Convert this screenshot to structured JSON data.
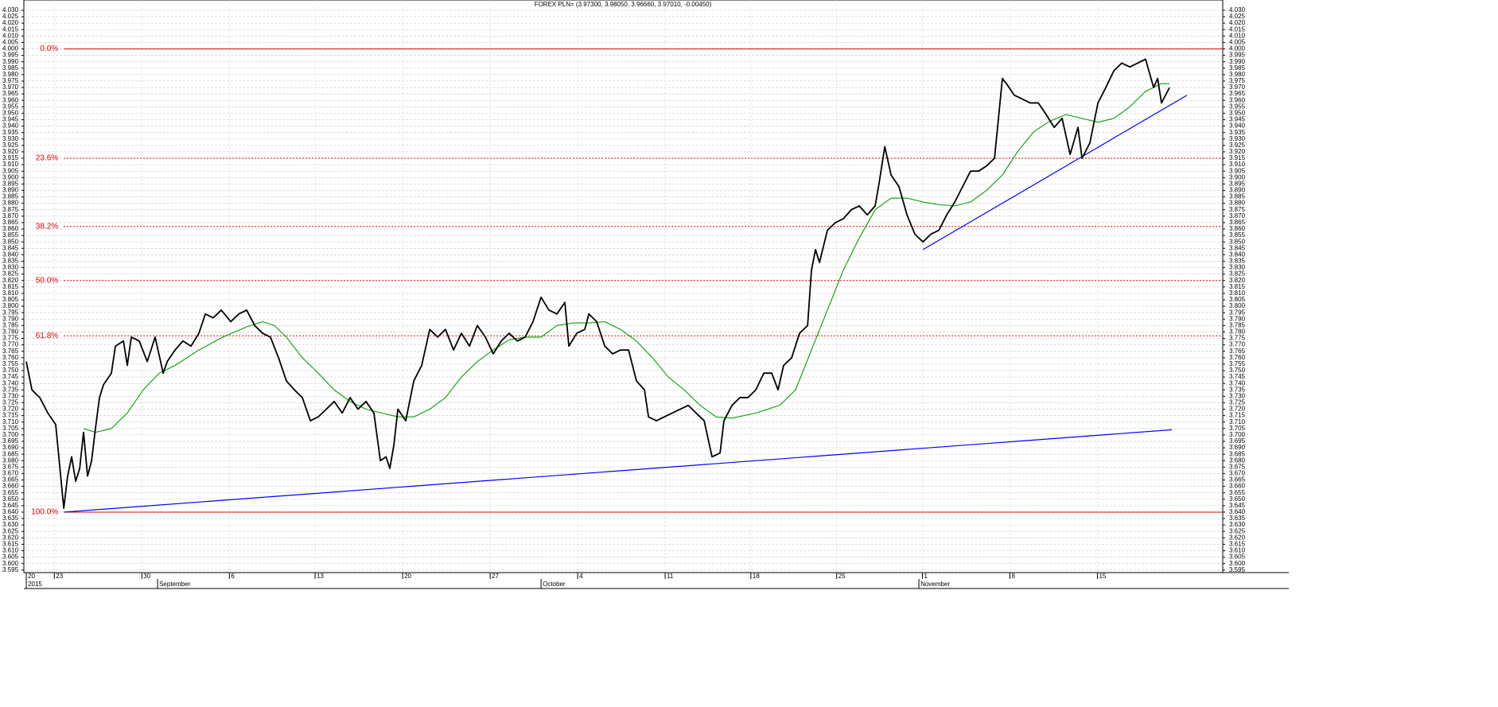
{
  "chart_data": {
    "type": "line",
    "title": "FOREX PLN= (3.97300, 3.98050, 3.96660, 3.97010, -0.00450)",
    "xlim": [
      -0.14,
      68.36
    ],
    "ylim": [
      3.593,
      4.038
    ],
    "grid": true,
    "yticks": [
      3.595,
      {
        "value": 3.6,
        "label": "3.600"
      },
      3.605,
      {
        "value": 3.61,
        "label": "3.610"
      },
      3.615,
      {
        "value": 3.62,
        "label": "3.620"
      },
      3.625,
      {
        "value": 3.63,
        "label": "3.630"
      },
      3.635,
      {
        "value": 3.64,
        "label": "3.640"
      },
      3.645,
      {
        "value": 3.65,
        "label": "3.650"
      },
      3.655,
      {
        "value": 3.66,
        "label": "3.660"
      },
      3.665,
      {
        "value": 3.67,
        "label": "3.670"
      },
      3.675,
      {
        "value": 3.68,
        "label": "3.680"
      },
      3.685,
      {
        "value": 3.69,
        "label": "3.690"
      },
      3.695,
      {
        "value": 3.7,
        "label": "3.700"
      },
      3.705,
      {
        "value": 3.71,
        "label": "3.710"
      },
      3.715,
      {
        "value": 3.72,
        "label": "3.720"
      },
      3.725,
      {
        "value": 3.73,
        "label": "3.730"
      },
      3.735,
      {
        "value": 3.74,
        "label": "3.740"
      },
      3.745,
      {
        "value": 3.75,
        "label": "3.750"
      },
      3.755,
      {
        "value": 3.76,
        "label": "3.760"
      },
      3.765,
      {
        "value": 3.77,
        "label": "3.770"
      },
      3.775,
      {
        "value": 3.78,
        "label": "3.780"
      },
      3.785,
      {
        "value": 3.79,
        "label": "3.790"
      },
      3.795,
      {
        "value": 3.8,
        "label": "3.800"
      },
      3.805,
      {
        "value": 3.81,
        "label": "3.810"
      },
      3.815,
      {
        "value": 3.82,
        "label": "3.820"
      },
      3.825,
      {
        "value": 3.83,
        "label": "3.830"
      },
      3.835,
      {
        "value": 3.84,
        "label": "3.840"
      },
      3.845,
      {
        "value": 3.85,
        "label": "3.850"
      },
      3.855,
      {
        "value": 3.86,
        "label": "3.860"
      },
      3.865,
      {
        "value": 3.87,
        "label": "3.870"
      },
      3.875,
      {
        "value": 3.88,
        "label": "3.880"
      },
      3.885,
      {
        "value": 3.89,
        "label": "3.890"
      },
      3.895,
      {
        "value": 3.9,
        "label": "3.900"
      },
      3.905,
      {
        "value": 3.91,
        "label": "3.910"
      },
      3.915,
      {
        "value": 3.92,
        "label": "3.920"
      },
      3.925,
      {
        "value": 3.93,
        "label": "3.930"
      },
      3.935,
      {
        "value": 3.94,
        "label": "3.940"
      },
      3.945,
      {
        "value": 3.95,
        "label": "3.950"
      },
      3.955,
      {
        "value": 3.96,
        "label": "3.960"
      },
      3.965,
      {
        "value": 3.97,
        "label": "3.970"
      },
      3.975,
      {
        "value": 3.98,
        "label": "3.980"
      },
      3.985,
      {
        "value": 3.99,
        "label": "3.990"
      },
      3.995,
      {
        "value": 4.0,
        "label": "4.000"
      },
      4.005,
      {
        "value": 4.01,
        "label": "4.010"
      },
      4.015,
      {
        "value": 4.02,
        "label": "4.020"
      },
      4.025,
      {
        "value": 4.03,
        "label": "4.030"
      }
    ],
    "xticks": [
      {
        "value": 0,
        "label": "20"
      },
      {
        "value": 1.6,
        "label": "23"
      },
      {
        "value": 6.6,
        "label": "30"
      },
      {
        "value": 11.6,
        "label": "6"
      },
      {
        "value": 16.5,
        "label": "13"
      },
      {
        "value": 21.5,
        "label": "20"
      },
      {
        "value": 26.5,
        "label": "27"
      },
      {
        "value": 31.5,
        "label": "4"
      },
      {
        "value": 36.5,
        "label": "11"
      },
      {
        "value": 41.4,
        "label": "18"
      },
      {
        "value": 46.3,
        "label": "25"
      },
      {
        "value": 51.2,
        "label": "1"
      },
      {
        "value": 56.2,
        "label": "8"
      },
      {
        "value": 61.2,
        "label": "15"
      }
    ],
    "x_period_labels": [
      {
        "value": 0,
        "label": "2015"
      },
      {
        "value": 7.5,
        "label": "September"
      },
      {
        "value": 29.41,
        "label": "October"
      },
      {
        "value": 51.0,
        "label": "November"
      }
    ],
    "x": [
      0,
      0.32,
      0.77,
      1.23,
      1.68,
      2.14,
      2.36,
      2.59,
      2.82,
      3.05,
      3.27,
      3.5,
      3.73,
      3.95,
      4.18,
      4.41,
      4.86,
      5.09,
      5.55,
      5.77,
      6,
      6.45,
      6.91,
      7.36,
      7.82,
      8.05,
      8.5,
      8.95,
      9.41,
      9.86,
      10.23,
      10.68,
      11.14,
      11.68,
      12.14,
      12.59,
      13.05,
      13.5,
      13.95,
      14.41,
      14.86,
      15.32,
      15.77,
      16.23,
      16.68,
      17.14,
      17.59,
      18.05,
      18.5,
      18.95,
      19.41,
      19.86,
      20.23,
      20.55,
      20.77,
      21,
      21.23,
      21.68,
      22.14,
      22.59,
      23.05,
      23.5,
      23.95,
      24.41,
      24.86,
      25.32,
      25.77,
      26.23,
      26.68,
      27.14,
      27.59,
      28.05,
      28.5,
      28.95,
      29.41,
      29.86,
      30.32,
      30.77,
      31,
      31.45,
      31.91,
      32.14,
      32.59,
      33.05,
      33.5,
      33.95,
      34.41,
      34.86,
      35.32,
      35.55,
      36,
      36.45,
      36.91,
      37.36,
      37.82,
      38.27,
      38.73,
      39.18,
      39.64,
      39.86,
      40.32,
      40.77,
      41.23,
      41.68,
      42.14,
      42.59,
      42.95,
      43.27,
      43.73,
      44.18,
      44.64,
      44.86,
      45.09,
      45.32,
      45.77,
      46.23,
      46.68,
      47.14,
      47.59,
      48.05,
      48.5,
      48.73,
      49.05,
      49.41,
      49.86,
      50.32,
      50.77,
      51.23,
      51.68,
      52.14,
      52.59,
      53.05,
      53.5,
      53.95,
      54.41,
      54.86,
      55.32,
      55.77,
      56,
      56.45,
      56.91,
      57.36,
      57.82,
      58.27,
      58.73,
      59.18,
      59.64,
      60.09,
      60.32,
      60.77,
      61.23,
      61.68,
      62.14,
      62.59,
      63.05,
      63.5,
      63.95,
      64.41,
      64.64,
      64.86,
      65.09,
      65.32
    ],
    "series": [
      {
        "name": "FOREX PLN=",
        "color": "#000000",
        "values": [
          3.757,
          3.735,
          3.729,
          3.717,
          3.708,
          3.643,
          3.668,
          3.683,
          3.664,
          3.674,
          3.702,
          3.668,
          3.68,
          3.705,
          3.729,
          3.739,
          3.748,
          3.769,
          3.773,
          3.754,
          3.776,
          3.773,
          3.757,
          3.776,
          3.748,
          3.757,
          3.766,
          3.773,
          3.769,
          3.779,
          3.794,
          3.791,
          3.797,
          3.788,
          3.794,
          3.797,
          3.785,
          3.779,
          3.776,
          3.76,
          3.742,
          3.735,
          3.729,
          3.711,
          3.714,
          3.72,
          3.726,
          3.717,
          3.729,
          3.72,
          3.726,
          3.717,
          3.68,
          3.683,
          3.674,
          3.692,
          3.72,
          3.711,
          3.742,
          3.754,
          3.782,
          3.776,
          3.782,
          3.766,
          3.779,
          3.769,
          3.785,
          3.776,
          3.763,
          3.773,
          3.779,
          3.773,
          3.776,
          3.788,
          3.807,
          3.797,
          3.794,
          3.803,
          3.769,
          3.779,
          3.782,
          3.794,
          3.788,
          3.769,
          3.763,
          3.766,
          3.766,
          3.742,
          3.735,
          3.714,
          3.711,
          3.714,
          3.717,
          3.72,
          3.723,
          3.717,
          3.711,
          3.683,
          3.686,
          3.711,
          3.723,
          3.729,
          3.729,
          3.735,
          3.748,
          3.748,
          3.735,
          3.754,
          3.76,
          3.779,
          3.785,
          3.828,
          3.844,
          3.834,
          3.859,
          3.865,
          3.868,
          3.875,
          3.878,
          3.871,
          3.878,
          3.896,
          3.924,
          3.902,
          3.893,
          3.871,
          3.856,
          3.85,
          3.856,
          3.859,
          3.871,
          3.881,
          3.893,
          3.905,
          3.905,
          3.909,
          3.915,
          3.977,
          3.973,
          3.964,
          3.961,
          3.958,
          3.958,
          3.949,
          3.939,
          3.946,
          3.918,
          3.939,
          3.915,
          3.927,
          3.958,
          3.97,
          3.983,
          3.989,
          3.986,
          3.989,
          3.992,
          3.97,
          3.977,
          3.958,
          3.964,
          3.97
        ]
      },
      {
        "color": "#00a000",
        "x": [
          3.27,
          3.95,
          4.86,
          5.77,
          6.68,
          7.59,
          8.5,
          9.86,
          11.23,
          12.59,
          13.5,
          14.18,
          14.86,
          15.77,
          16.68,
          17.59,
          18.5,
          19.41,
          20.32,
          21.23,
          22.14,
          23.05,
          23.95,
          24.86,
          25.77,
          26.68,
          27.59,
          28.5,
          29.41,
          30.32,
          31.23,
          32.14,
          33.05,
          33.95,
          34.86,
          35.77,
          36.68,
          37.59,
          38.5,
          39.41,
          40.32,
          41.68,
          43.05,
          43.95,
          44.86,
          45.77,
          46.68,
          47.59,
          48.5,
          49.41,
          50.32,
          51.23,
          52.14,
          53.05,
          53.95,
          54.86,
          55.77,
          56.68,
          57.59,
          58.5,
          59.41,
          60.32,
          61.23,
          62.14,
          63.05,
          63.95,
          64.86,
          65.32
        ],
        "values": [
          3.705,
          3.702,
          3.705,
          3.717,
          3.735,
          3.748,
          3.754,
          3.766,
          3.776,
          3.784,
          3.788,
          3.785,
          3.776,
          3.76,
          3.748,
          3.735,
          3.726,
          3.72,
          3.717,
          3.714,
          3.714,
          3.72,
          3.729,
          3.745,
          3.757,
          3.766,
          3.774,
          3.776,
          3.776,
          3.785,
          3.787,
          3.787,
          3.788,
          3.782,
          3.773,
          3.76,
          3.745,
          3.735,
          3.723,
          3.714,
          3.713,
          3.717,
          3.723,
          3.735,
          3.766,
          3.797,
          3.828,
          3.853,
          3.875,
          3.884,
          3.884,
          3.881,
          3.879,
          3.878,
          3.881,
          3.89,
          3.902,
          3.921,
          3.936,
          3.944,
          3.949,
          3.946,
          3.943,
          3.946,
          3.955,
          3.967,
          3.973,
          3.973
        ]
      }
    ],
    "trendlines": [
      {
        "color": "#0000ff",
        "x": [
          2.14,
          65.45
        ],
        "values": [
          3.64,
          3.704
        ]
      },
      {
        "color": "#0000ff",
        "x": [
          51.23,
          66.32
        ],
        "values": [
          3.844,
          3.964
        ]
      }
    ],
    "fib_color": "#e00000",
    "fib_levels": [
      {
        "label": "0.0%",
        "value": 4.0
      },
      {
        "label": "23.6%",
        "value": 3.915
      },
      {
        "label": "38.2%",
        "value": 3.862
      },
      {
        "label": "50.0%",
        "value": 3.82
      },
      {
        "label": "61.8%",
        "value": 3.777
      },
      {
        "label": "100.0%",
        "value": 3.64
      }
    ]
  }
}
